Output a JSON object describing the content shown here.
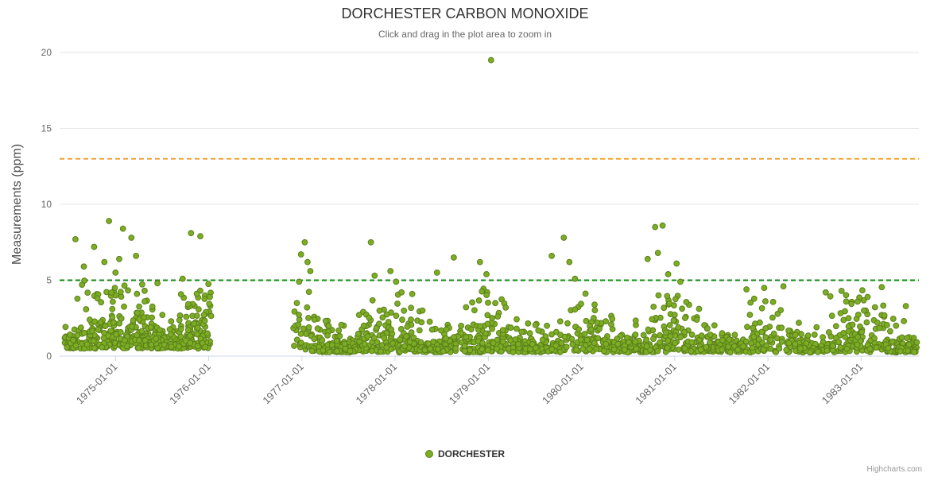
{
  "header": {
    "title": "DORCHESTER CARBON MONOXIDE",
    "subtitle": "Click and drag in the plot area to zoom in"
  },
  "legend": {
    "label": "DORCHESTER"
  },
  "credits": {
    "label": "Highcharts.com"
  },
  "chart_data": {
    "type": "scatter",
    "title": "DORCHESTER CARBON MONOXIDE",
    "subtitle": "Click and drag in the plot area to zoom in",
    "xlabel": "",
    "ylabel": "Measurements (ppm)",
    "series_name": "DORCHESTER",
    "marker_color": "#7cad24",
    "marker_stroke": "#5c801b",
    "xlim": [
      1974.4,
      1983.62
    ],
    "ylim": [
      0,
      20
    ],
    "y_ticks": [
      0,
      5,
      10,
      15,
      20
    ],
    "x_ticks": [
      {
        "label": "1975-01-01",
        "value": 1975
      },
      {
        "label": "1976-01-01",
        "value": 1976
      },
      {
        "label": "1977-01-01",
        "value": 1977
      },
      {
        "label": "1978-01-01",
        "value": 1978
      },
      {
        "label": "1979-01-01",
        "value": 1979
      },
      {
        "label": "1980-01-01",
        "value": 1980
      },
      {
        "label": "1981-01-01",
        "value": 1981
      },
      {
        "label": "1982-01-01",
        "value": 1982
      },
      {
        "label": "1983-01-01",
        "value": 1983
      }
    ],
    "plot_lines": [
      {
        "name": "green-threshold-line",
        "value": 5,
        "color": "#118a11",
        "dash": "6,4",
        "width": 2
      },
      {
        "name": "orange-threshold-line",
        "value": 13,
        "color": "#efa439",
        "dash": "6,4",
        "width": 2
      }
    ],
    "grid": "horizontal-only",
    "grid_color": "#e6e6e6",
    "axis_line_color": "#ccd6eb",
    "label_color": "#666666",
    "legend_position": "bottom",
    "notable_points": [
      [
        1974.57,
        7.7
      ],
      [
        1974.66,
        5.9
      ],
      [
        1974.77,
        7.2
      ],
      [
        1974.88,
        6.2
      ],
      [
        1974.93,
        8.9
      ],
      [
        1975.0,
        5.5
      ],
      [
        1975.04,
        6.4
      ],
      [
        1975.08,
        8.4
      ],
      [
        1975.17,
        7.8
      ],
      [
        1975.22,
        6.6
      ],
      [
        1975.45,
        4.8
      ],
      [
        1975.72,
        5.1
      ],
      [
        1975.81,
        8.1
      ],
      [
        1975.91,
        7.9
      ],
      [
        1976.97,
        4.9
      ],
      [
        1976.99,
        6.7
      ],
      [
        1977.03,
        7.5
      ],
      [
        1977.06,
        6.2
      ],
      [
        1977.09,
        5.6
      ],
      [
        1977.74,
        7.5
      ],
      [
        1977.78,
        5.3
      ],
      [
        1977.95,
        5.6
      ],
      [
        1978.01,
        4.9
      ],
      [
        1978.45,
        5.5
      ],
      [
        1978.63,
        6.5
      ],
      [
        1978.91,
        6.2
      ],
      [
        1978.98,
        5.4
      ],
      [
        1979.03,
        19.5
      ],
      [
        1979.68,
        6.6
      ],
      [
        1979.81,
        7.8
      ],
      [
        1979.87,
        6.2
      ],
      [
        1979.93,
        5.1
      ],
      [
        1980.71,
        6.4
      ],
      [
        1980.79,
        8.5
      ],
      [
        1980.82,
        6.8
      ],
      [
        1980.87,
        8.6
      ],
      [
        1980.93,
        5.4
      ],
      [
        1981.02,
        6.1
      ],
      [
        1981.06,
        4.9
      ],
      [
        1981.77,
        4.4
      ],
      [
        1981.96,
        4.5
      ],
      [
        1982.62,
        4.2
      ],
      [
        1982.79,
        4.3
      ],
      [
        1983.07,
        3.9
      ],
      [
        1983.48,
        3.3
      ]
    ],
    "point_clusters": [
      {
        "x_start": 1974.45,
        "x_end": 1976.03,
        "count": 470,
        "y_base": 0.5,
        "y_scale": 1.15,
        "y_cap": 5.0
      },
      {
        "x_start": 1976.9,
        "x_end": 1983.6,
        "count": 1450,
        "y_base": 0.25,
        "y_scale": 0.85,
        "y_cap": 4.6
      }
    ],
    "seed": 42
  }
}
